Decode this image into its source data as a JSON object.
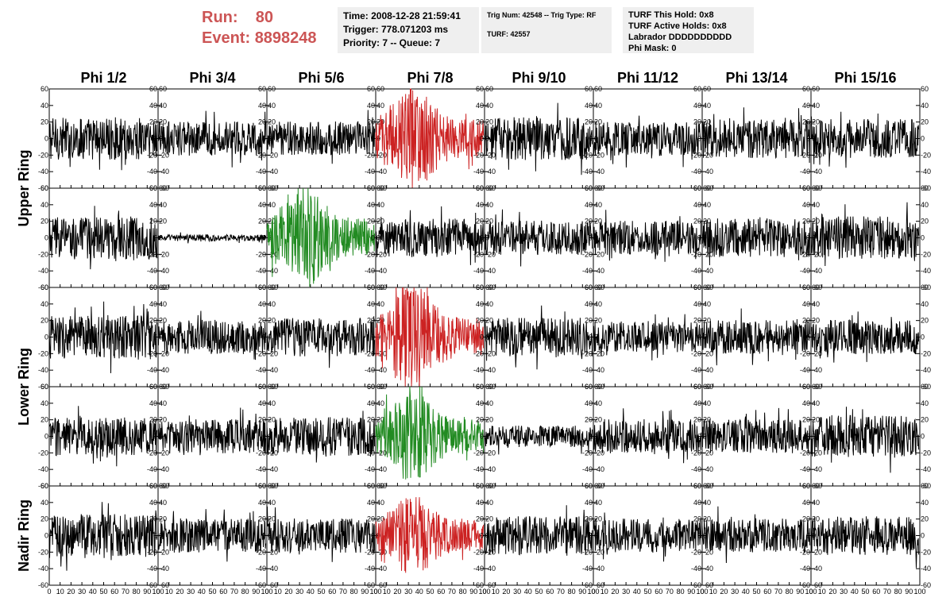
{
  "header": {
    "run_label": "Run:",
    "run_value": "80",
    "event_label": "Event:",
    "event_value": "8898248"
  },
  "info_panels": {
    "time": "Time: 2008-12-28 21:59:41",
    "trigger": "Trigger: 778.071203 ms",
    "priority": "Priority: 7 -- Queue: 7",
    "trig_num": "Trig Num: 42548 -- Trig Type: RF",
    "turf": "TURF: 42557",
    "turf_this_hold": "TURF This Hold: 0x8",
    "turf_active_holds": "TURF Active Holds: 0x8",
    "labrador": "Labrador DDDDDDDDDD",
    "phi_mask": "Phi Mask: 0"
  },
  "chart_data": {
    "type": "line",
    "columns": [
      "Phi 1/2",
      "Phi 3/4",
      "Phi 5/6",
      "Phi 7/8",
      "Phi 9/10",
      "Phi 11/12",
      "Phi 13/14",
      "Phi 15/16"
    ],
    "row_groups": [
      {
        "label": "Upper Ring",
        "rows": [
          0,
          1
        ]
      },
      {
        "label": "Lower Ring",
        "rows": [
          2,
          3
        ]
      },
      {
        "label": "Nadir Ring",
        "rows": [
          4
        ]
      }
    ],
    "ylim": [
      -60,
      60
    ],
    "yticks": [
      "60",
      "40",
      "20",
      "0",
      "-20",
      "-40",
      "-60"
    ],
    "xlim": [
      0,
      100
    ],
    "xticks": [
      "0",
      "10",
      "20",
      "30",
      "40",
      "50",
      "60",
      "70",
      "80",
      "90",
      "100"
    ],
    "colors": {
      "normal": "#000000",
      "triggered_red": "#cc2222",
      "triggered_green": "#228b22"
    },
    "panels": [
      [
        {
          "style": "normal",
          "amplitude": 20
        },
        {
          "style": "normal",
          "amplitude": 16
        },
        {
          "style": "normal",
          "amplitude": 16
        },
        {
          "style": "red",
          "amplitude": 40
        },
        {
          "style": "normal",
          "amplitude": 20
        },
        {
          "style": "normal",
          "amplitude": 16
        },
        {
          "style": "normal",
          "amplitude": 18
        },
        {
          "style": "normal",
          "amplitude": 18
        }
      ],
      [
        {
          "style": "normal",
          "amplitude": 20
        },
        {
          "style": "normal",
          "amplitude": 3
        },
        {
          "style": "green",
          "amplitude": 40
        },
        {
          "style": "normal",
          "amplitude": 18
        },
        {
          "style": "normal",
          "amplitude": 16
        },
        {
          "style": "normal",
          "amplitude": 16
        },
        {
          "style": "normal",
          "amplitude": 18
        },
        {
          "style": "normal",
          "amplitude": 20
        }
      ],
      [
        {
          "style": "normal",
          "amplitude": 20
        },
        {
          "style": "normal",
          "amplitude": 16
        },
        {
          "style": "normal",
          "amplitude": 18
        },
        {
          "style": "red",
          "amplitude": 40
        },
        {
          "style": "normal",
          "amplitude": 18
        },
        {
          "style": "normal",
          "amplitude": 14
        },
        {
          "style": "normal",
          "amplitude": 16
        },
        {
          "style": "normal",
          "amplitude": 16
        }
      ],
      [
        {
          "style": "normal",
          "amplitude": 18
        },
        {
          "style": "normal",
          "amplitude": 16
        },
        {
          "style": "normal",
          "amplitude": 18
        },
        {
          "style": "green",
          "amplitude": 36
        },
        {
          "style": "normal",
          "amplitude": 10
        },
        {
          "style": "normal",
          "amplitude": 16
        },
        {
          "style": "normal",
          "amplitude": 16
        },
        {
          "style": "normal",
          "amplitude": 20
        }
      ],
      [
        {
          "style": "normal",
          "amplitude": 20
        },
        {
          "style": "normal",
          "amplitude": 16
        },
        {
          "style": "normal",
          "amplitude": 16
        },
        {
          "style": "red",
          "amplitude": 32
        },
        {
          "style": "normal",
          "amplitude": 18
        },
        {
          "style": "normal",
          "amplitude": 16
        },
        {
          "style": "normal",
          "amplitude": 16
        },
        {
          "style": "normal",
          "amplitude": 18
        }
      ]
    ]
  }
}
